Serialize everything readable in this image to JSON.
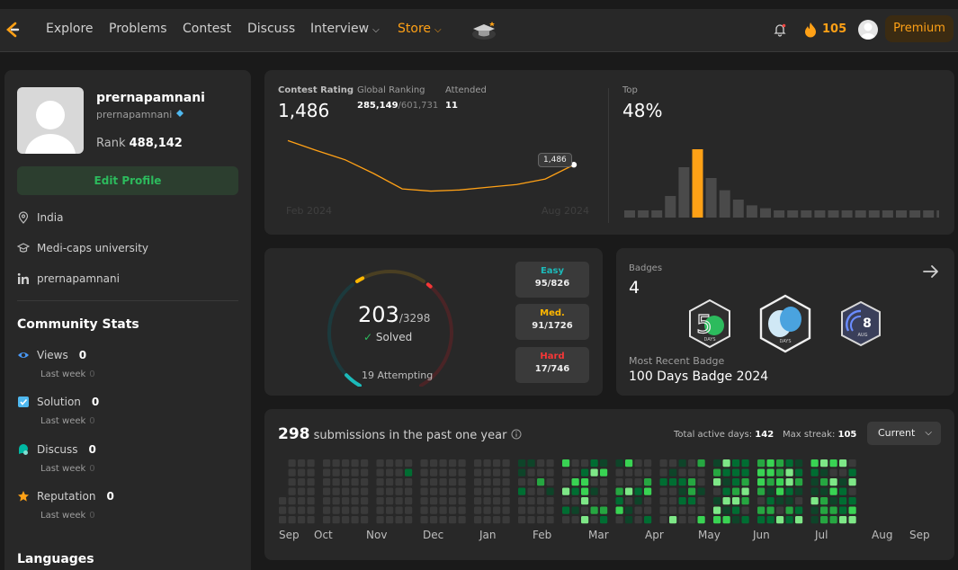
{
  "nav": {
    "items": [
      "Explore",
      "Problems",
      "Contest",
      "Discuss",
      "Interview",
      "Store"
    ],
    "streak": "105",
    "premium": "Premium"
  },
  "profile": {
    "name": "prernapamnani",
    "handle": "prernapamnani",
    "rank_label": "Rank",
    "rank": "488,142",
    "edit": "Edit Profile",
    "location": "India",
    "school": "Medi-caps university",
    "linkedin": "prernapamnani"
  },
  "community": {
    "title": "Community Stats",
    "stats": [
      {
        "label": "Views",
        "value": "0",
        "sub": "Last week",
        "sub_value": "0",
        "icon": "eye-icon",
        "color": "#4a9af8"
      },
      {
        "label": "Solution",
        "value": "0",
        "sub": "Last week",
        "sub_value": "0",
        "icon": "check-square-icon",
        "color": "#4fb8ef"
      },
      {
        "label": "Discuss",
        "value": "0",
        "sub": "Last week",
        "sub_value": "0",
        "icon": "chat-bubble-icon",
        "color": "#00b8a3"
      },
      {
        "label": "Reputation",
        "value": "0",
        "sub": "Last week",
        "sub_value": "0",
        "icon": "star-icon",
        "color": "#ffa116"
      }
    ],
    "languages": "Languages"
  },
  "contest": {
    "rating_label": "Contest Rating",
    "rating": "1,486",
    "global_label": "Global Ranking",
    "global_rank": "285,149",
    "global_total": "/601,731",
    "attended_label": "Attended",
    "attended": "11",
    "tooltip": "1,486",
    "start_label": "Feb 2024",
    "end_label": "Aug 2024",
    "top_label": "Top",
    "top_value": "48%",
    "colors": {
      "line": "#ffa116",
      "bar": "#4a4a4a",
      "highlight": "#ffa116"
    }
  },
  "chart_data": [
    {
      "type": "line",
      "title": "",
      "series": [
        {
          "values": [
            1530,
            1512,
            1495,
            1470,
            1442,
            1438,
            1440,
            1445,
            1450,
            1460,
            1486
          ]
        }
      ],
      "ylim": [
        1380,
        1560
      ]
    },
    {
      "type": "bar",
      "title": "",
      "values": [
        1,
        1,
        1,
        3,
        7,
        9.5,
        5.5,
        3.8,
        2.5,
        1.7,
        1.3,
        1,
        1,
        1,
        1,
        1,
        1,
        1,
        1,
        1,
        1,
        1,
        1,
        1,
        1,
        1
      ],
      "highlight_index": 5
    }
  ],
  "solved": {
    "count": "203",
    "total": "/3298",
    "label": "Solved",
    "attempting": "19 Attempting",
    "easy": {
      "label": "Easy",
      "value": "95/826",
      "color": "#1cbaba",
      "fraction": 0.115
    },
    "medium": {
      "label": "Med.",
      "value": "91/1726",
      "color": "#ffb700",
      "fraction": 0.053
    },
    "hard": {
      "label": "Hard",
      "value": "17/746",
      "color": "#f63737",
      "fraction": 0.023
    }
  },
  "badges": {
    "label": "Badges",
    "count": "4",
    "recent_label": "Most Recent Badge",
    "recent": "100 Days Badge 2024",
    "items": [
      {
        "name": "50-days-badge-icon",
        "text": "DAYS"
      },
      {
        "name": "100-days-badge-icon",
        "text": "DAYS"
      },
      {
        "name": "aug-badge-icon",
        "text": "8",
        "sub": "AUG"
      }
    ]
  },
  "submissions": {
    "count": "298",
    "label": "submissions in the past one year",
    "active_label": "Total active days:",
    "active_value": "142",
    "streak_label": "Max streak:",
    "streak_value": "105",
    "select": "Current",
    "months": [
      "Sep",
      "Oct",
      "Nov",
      "Dec",
      "Jan",
      "Feb",
      "Mar",
      "Apr",
      "May",
      "Jun",
      "Jul",
      "Aug",
      "Sep"
    ],
    "colors": {
      "empty": "#3a3a3a",
      "l1": "#0e4429",
      "l2": "#006d32",
      "l3": "#26a641",
      "l4": "#39d353",
      "l5": "#7ee787"
    }
  }
}
